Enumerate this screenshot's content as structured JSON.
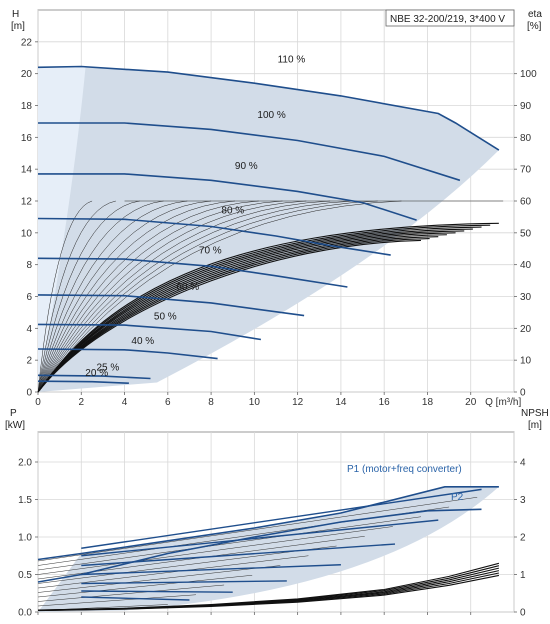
{
  "chart_data": [
    {
      "type": "line",
      "title": "NBE 32-200/219, 3*400 V",
      "xlabel": "Q [m³/h]",
      "ylabel": "H\n[m]",
      "y2label": "eta\n[%]",
      "xlim": [
        0,
        22
      ],
      "ylim": [
        0,
        24
      ],
      "y2lim": [
        0,
        120
      ],
      "xticks": [
        0,
        2,
        4,
        6,
        8,
        10,
        12,
        14,
        16,
        18,
        20
      ],
      "xtick_labels": [
        "0",
        "2",
        "4",
        "6",
        "8",
        "10",
        "12",
        "14",
        "16",
        "18",
        "20"
      ],
      "last_xtick_label": "Q [m³/h]",
      "yticks": [
        0,
        2,
        4,
        6,
        8,
        10,
        12,
        14,
        16,
        18,
        20,
        22
      ],
      "y2ticks": [
        0,
        10,
        20,
        30,
        40,
        50,
        60,
        70,
        80,
        90,
        100
      ],
      "grid": true,
      "speed_curves": [
        {
          "name": "110 %",
          "x": [
            0,
            2,
            6,
            10,
            14,
            18.5,
            19.3,
            21.3
          ],
          "y": [
            20.4,
            20.45,
            20.1,
            19.4,
            18.6,
            17.5,
            16.9,
            15.2
          ]
        },
        {
          "name": "100 %",
          "x": [
            0,
            4,
            8,
            12,
            16,
            19.5
          ],
          "y": [
            16.9,
            16.9,
            16.5,
            15.8,
            14.8,
            13.3
          ]
        },
        {
          "name": "90 %",
          "x": [
            0,
            4,
            8,
            12,
            15,
            17.5
          ],
          "y": [
            13.7,
            13.7,
            13.3,
            12.6,
            11.9,
            10.8
          ]
        },
        {
          "name": "80 %",
          "x": [
            0,
            4,
            8,
            11,
            13.5,
            16.3
          ],
          "y": [
            10.9,
            10.85,
            10.4,
            9.8,
            9.2,
            8.6
          ]
        },
        {
          "name": "70 %",
          "x": [
            0,
            4,
            8,
            11,
            14.3
          ],
          "y": [
            8.4,
            8.35,
            7.9,
            7.3,
            6.6
          ]
        },
        {
          "name": "60 %",
          "x": [
            0,
            4,
            8,
            12.3
          ],
          "y": [
            6.1,
            6.05,
            5.6,
            4.8
          ]
        },
        {
          "name": "50 %",
          "x": [
            0,
            4,
            8,
            10.3
          ],
          "y": [
            4.25,
            4.2,
            3.8,
            3.3
          ]
        },
        {
          "name": "40 %",
          "x": [
            0,
            4,
            6,
            8.3
          ],
          "y": [
            2.7,
            2.65,
            2.45,
            2.1
          ]
        },
        {
          "name": "25 %",
          "x": [
            0,
            3,
            5.2
          ],
          "y": [
            1.05,
            1.0,
            0.85
          ]
        },
        {
          "name": "20 %",
          "x": [
            0,
            2.5,
            4.2
          ],
          "y": [
            0.68,
            0.65,
            0.55
          ]
        }
      ],
      "efficiency_curve_peak": {
        "x": 18.5,
        "eta": 53
      }
    },
    {
      "type": "line",
      "title": "",
      "xlabel": "",
      "ylabel": "P\n[kW]",
      "y2label": "NPSH\n[m]",
      "xlim": [
        0,
        22
      ],
      "ylim": [
        0,
        2.4
      ],
      "y2lim": [
        0,
        4.8
      ],
      "yticks": [
        0.0,
        0.5,
        1.0,
        1.5,
        2.0
      ],
      "ytick_labels": [
        "0.0",
        "0.5",
        "1.0",
        "1.5",
        "2.0"
      ],
      "y2ticks": [
        0,
        1,
        2,
        3,
        4
      ],
      "grid": true,
      "series": [
        {
          "name": "P1 (motor+freq converter)",
          "x": [
            0,
            2,
            6,
            10,
            14,
            18.8,
            21.3
          ],
          "y": [
            0.7,
            0.78,
            0.95,
            1.12,
            1.32,
            1.67,
            1.67
          ]
        },
        {
          "name": "P2",
          "x": [
            0,
            2,
            6,
            10,
            14,
            18,
            20.5
          ],
          "y": [
            0.4,
            0.5,
            0.78,
            1.0,
            1.2,
            1.35,
            1.37
          ]
        }
      ],
      "npsh_curve": {
        "x": [
          0,
          4,
          8,
          12,
          16,
          19,
          21.3
        ],
        "npsh": [
          0.05,
          0.1,
          0.2,
          0.35,
          0.6,
          0.95,
          1.3
        ]
      },
      "annotations": [
        "P1 (motor+freq converter)",
        "P2"
      ]
    }
  ]
}
